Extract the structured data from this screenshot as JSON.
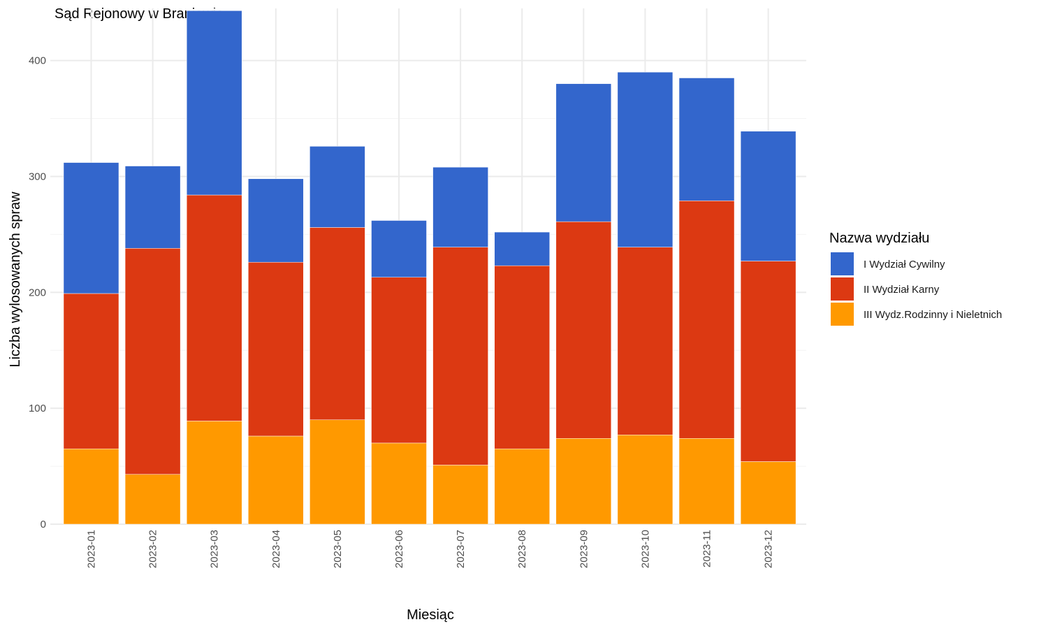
{
  "chart_data": {
    "type": "bar",
    "stacked": true,
    "title": "Sąd Rejonowy w Braniewie",
    "xlabel": "Miesiąc",
    "ylabel": "Liczba wylosowanych spraw",
    "ylim": [
      0,
      445
    ],
    "yticks": [
      0,
      100,
      200,
      300,
      400
    ],
    "grid": true,
    "legend_title": "Nazwa wydziału",
    "legend_position": "right",
    "categories": [
      "2023-01",
      "2023-02",
      "2023-03",
      "2023-04",
      "2023-05",
      "2023-06",
      "2023-07",
      "2023-08",
      "2023-09",
      "2023-10",
      "2023-11",
      "2023-12"
    ],
    "series": [
      {
        "name": "III Wydz.Rodzinny i Nieletnich",
        "color": "#FF9900",
        "values": [
          65,
          43,
          89,
          76,
          90,
          70,
          51,
          65,
          74,
          77,
          74,
          54
        ]
      },
      {
        "name": "II Wydział Karny",
        "color": "#DC3912",
        "values": [
          134,
          195,
          195,
          150,
          166,
          143,
          188,
          158,
          187,
          162,
          205,
          173
        ]
      },
      {
        "name": "I Wydział Cywilny",
        "color": "#3366CC",
        "values": [
          113,
          71,
          159,
          72,
          70,
          49,
          69,
          29,
          119,
          151,
          106,
          112
        ]
      }
    ],
    "legend_order": [
      "I Wydział Cywilny",
      "II Wydział Karny",
      "III Wydz.Rodzinny i Nieletnich"
    ]
  }
}
